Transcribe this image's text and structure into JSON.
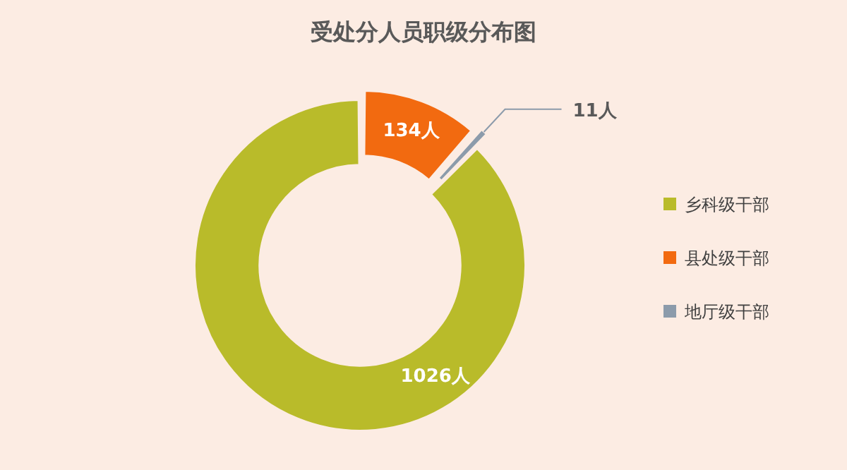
{
  "chart_data": {
    "type": "donut",
    "title": "受处分人员职级分布图",
    "categories": [
      "乡科级干部",
      "县处级干部",
      "地厅级干部"
    ],
    "values": [
      1026,
      134,
      11
    ],
    "value_labels": [
      "1026人",
      "134人",
      "11人"
    ],
    "colors": [
      "#b9bb2a",
      "#f26a10",
      "#8c9bab"
    ],
    "legend": "right"
  }
}
